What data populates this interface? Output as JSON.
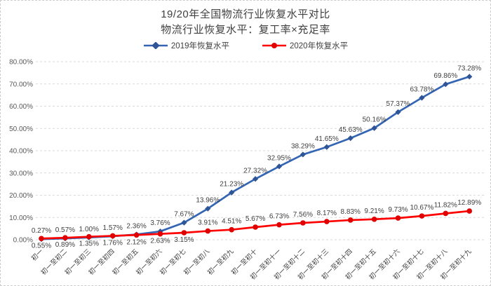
{
  "title": {
    "line1": "19/20年全国物流行业恢复水平对比",
    "line2": "物流行业恢复水平：复工率×充足率"
  },
  "legend": {
    "items": [
      {
        "label": "2019年恢复水平",
        "color": "#2F5597",
        "marker": "diamond"
      },
      {
        "label": "2020年恢复水平",
        "color": "#FF0000",
        "marker": "circle"
      }
    ]
  },
  "chart_data": {
    "type": "line",
    "title": "19/20年全国物流行业恢复水平对比",
    "subtitle": "物流行业恢复水平：复工率×充足率",
    "legend_position": "top",
    "grid": "horizontal-dashed",
    "grid_color": "#D9D9D9",
    "ylim": [
      0,
      80
    ],
    "yticks": [
      "0.00%",
      "10.00%",
      "20.00%",
      "30.00%",
      "40.00%",
      "50.00%",
      "60.00%",
      "70.00%",
      "80.00%"
    ],
    "data_label_format": "0.00%",
    "categories": [
      "初一",
      "初一至初二",
      "初一至初三",
      "初一至初四",
      "初一至初五",
      "初一至初六",
      "初一至初七",
      "初一至初八",
      "初一至初九",
      "初一至初十",
      "初一至初十一",
      "初一至初十二",
      "初一至初十三",
      "初一至初十四",
      "初一至初十五",
      "初一至初十六",
      "初一至初十七",
      "初一至初十八",
      "初一至初十九"
    ],
    "series": [
      {
        "name": "2019年恢复水平",
        "color": "#3465B4",
        "marker_color": "#2F5597",
        "marker": "diamond",
        "label_position": "above",
        "values": [
          0.27,
          0.57,
          1.0,
          1.57,
          2.36,
          3.76,
          7.67,
          13.96,
          21.23,
          27.32,
          32.95,
          38.29,
          41.65,
          45.63,
          50.16,
          57.37,
          63.78,
          69.86,
          73.28
        ]
      },
      {
        "name": "2020年恢复水平",
        "color": "#FF0000",
        "marker_color": "#E00000",
        "marker": "circle",
        "label_position": "below-then-above",
        "label_below_count": 7,
        "values": [
          0.55,
          0.89,
          1.35,
          1.76,
          2.12,
          2.63,
          3.15,
          3.91,
          4.51,
          5.67,
          6.73,
          7.56,
          8.17,
          8.83,
          9.21,
          9.73,
          10.67,
          11.82,
          12.89
        ]
      }
    ]
  }
}
